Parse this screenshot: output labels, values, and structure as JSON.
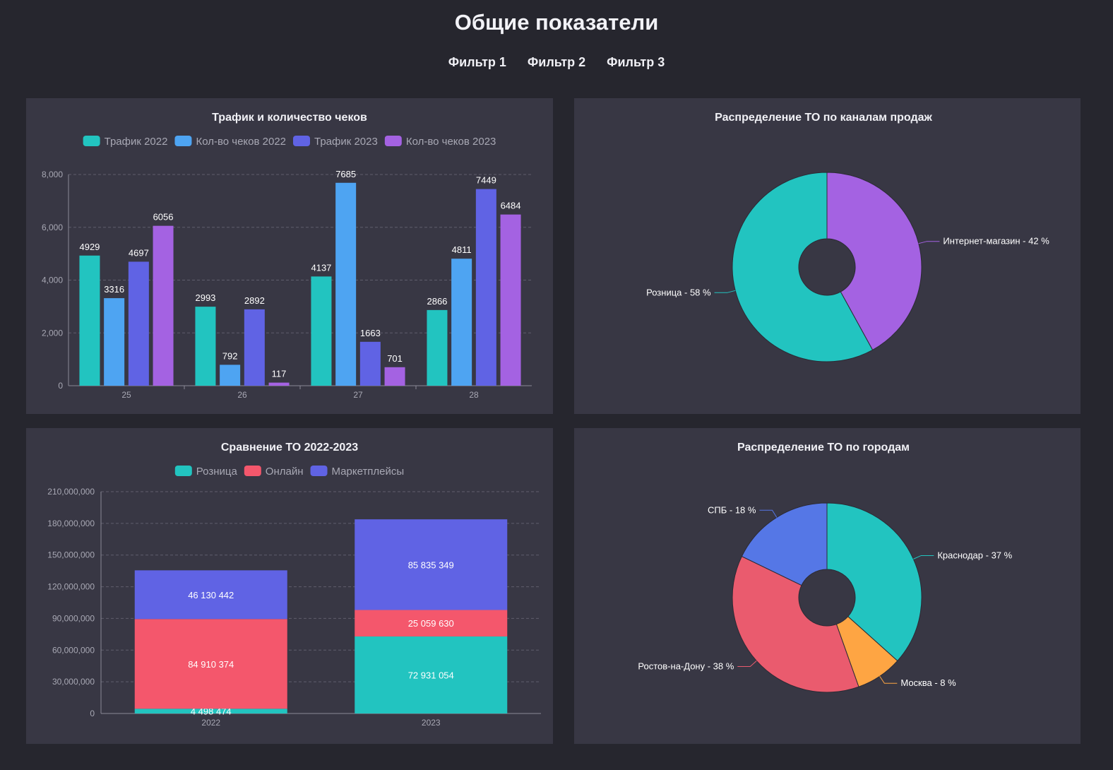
{
  "page": {
    "title": "Общие показатели",
    "filters": [
      "Фильтр 1",
      "Фильтр 2",
      "Фильтр 3"
    ]
  },
  "colors": {
    "teal": "#22c4c0",
    "blue": "#4ea4f2",
    "indigo": "#6063e4",
    "purple": "#a462e2",
    "red": "#f4576c",
    "orange": "#fea543",
    "sky": "#5577e6",
    "grid": "#5f5e6c",
    "panel": "#383744"
  },
  "chart_data": [
    {
      "id": "traffic",
      "type": "bar",
      "title": "Трафик и количество чеков",
      "categories": [
        "25",
        "26",
        "27",
        "28"
      ],
      "series": [
        {
          "name": "Трафик 2022",
          "color": "#22c4c0",
          "values": [
            4929,
            2993,
            4137,
            2866
          ]
        },
        {
          "name": "Кол-во чеков 2022",
          "color": "#4ea4f2",
          "values": [
            3316,
            792,
            7685,
            4811
          ]
        },
        {
          "name": "Трафик  2023",
          "color": "#6063e4",
          "values": [
            4697,
            2892,
            1663,
            7449
          ]
        },
        {
          "name": "Кол-во чеков 2023",
          "color": "#a462e2",
          "values": [
            6056,
            117,
            701,
            6484
          ]
        }
      ],
      "yticks": [
        "0",
        "2,000",
        "4,000",
        "6,000",
        "8,000"
      ],
      "ylim": [
        0,
        8000
      ],
      "grid": true,
      "legend": "top"
    },
    {
      "id": "channels",
      "type": "pie",
      "title": "Распределение ТО по каналам продаж",
      "slices": [
        {
          "name": "Интернет-магазин",
          "value": 42,
          "label": "Интернет-магазин - 42 %",
          "color": "#a462e2"
        },
        {
          "name": "Розница",
          "value": 58,
          "label": "Розница - 58 %",
          "color": "#22c4c0"
        }
      ]
    },
    {
      "id": "compare",
      "type": "bar",
      "stacked": true,
      "title": "Сравнение ТО 2022-2023",
      "categories": [
        "2022",
        "2023"
      ],
      "series": [
        {
          "name": "Розница",
          "color": "#22c4c0",
          "values": [
            4498474,
            72931054
          ],
          "labels": [
            "4 498 474",
            "72 931 054"
          ]
        },
        {
          "name": "Онлайн",
          "color": "#f4576c",
          "values": [
            84910374,
            25059630
          ],
          "labels": [
            "84 910 374",
            "25 059 630"
          ]
        },
        {
          "name": "Маркетплейсы",
          "color": "#6063e4",
          "values": [
            46130442,
            85835349
          ],
          "labels": [
            "46 130 442",
            "85 835 349"
          ]
        }
      ],
      "yticks": [
        "0",
        "30,000,000",
        "60,000,000",
        "90,000,000",
        "120,000,000",
        "150,000,000",
        "180,000,000",
        "210,000,000"
      ],
      "ylim": [
        0,
        210000000
      ],
      "grid": true,
      "legend": "top"
    },
    {
      "id": "cities",
      "type": "pie",
      "title": "Распределение ТО по городам",
      "slices": [
        {
          "name": "Краснодар",
          "value": 37,
          "label": "Краснодар - 37 %",
          "color": "#22c4c0"
        },
        {
          "name": "Москва",
          "value": 8,
          "label": "Москва - 8 %",
          "color": "#fea543"
        },
        {
          "name": "Ростов-на-Дону",
          "value": 38,
          "label": "Ростов-на-Дону - 38 %",
          "color": "#ea5b6e"
        },
        {
          "name": "СПБ",
          "value": 18,
          "label": "СПБ - 18 %",
          "color": "#5577e6"
        }
      ]
    }
  ]
}
